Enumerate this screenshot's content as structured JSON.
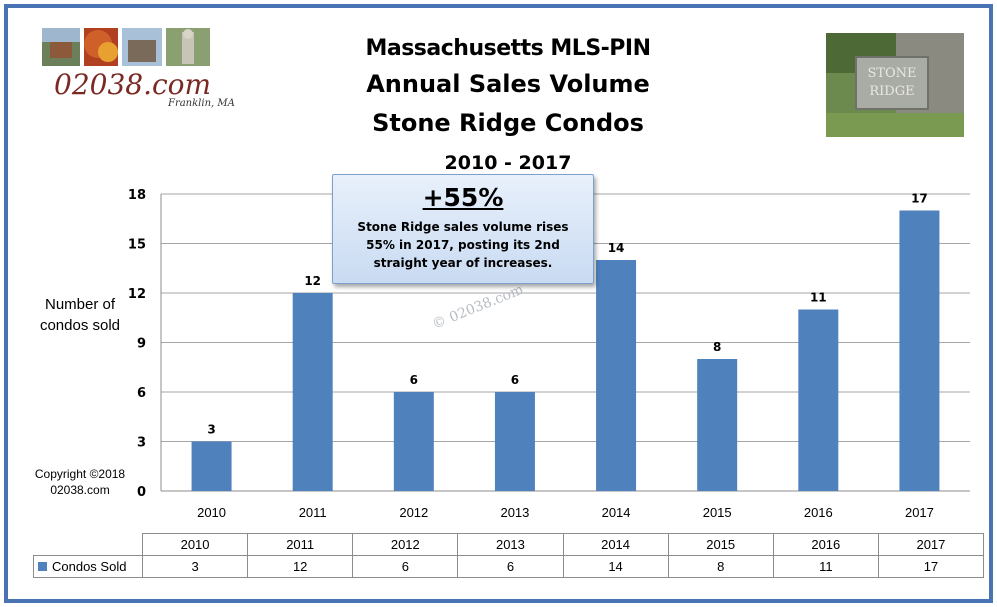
{
  "title_lines": [
    "Massachusetts MLS-PIN",
    "Annual Sales Volume",
    "Stone Ridge Condos",
    "2010 - 2017"
  ],
  "logo": {
    "text": "02038.com",
    "subtext": "Franklin, MA"
  },
  "photo": {
    "sign_line1": "STONE",
    "sign_line2": "RIDGE"
  },
  "callout": {
    "headline": "+55%",
    "text": "Stone Ridge sales volume rises 55% in 2017, posting its 2nd straight year of increases."
  },
  "watermark": "© 02038.com",
  "copyright": [
    "Copyright ©2018",
    "02038.com"
  ],
  "colors": {
    "bar": "#4f81bd",
    "frame": "#4a73b4"
  },
  "chart_data": {
    "type": "bar",
    "categories": [
      "2010",
      "2011",
      "2012",
      "2013",
      "2014",
      "2015",
      "2016",
      "2017"
    ],
    "series": [
      {
        "name": "Condos Sold",
        "values": [
          3,
          12,
          6,
          6,
          14,
          8,
          11,
          17
        ]
      }
    ],
    "ylabel": "Number of condos sold",
    "xlabel": "",
    "ylim": [
      0,
      18
    ],
    "yticks": [
      0,
      3,
      6,
      9,
      12,
      15,
      18
    ],
    "grid": true,
    "data_labels": true,
    "data_table": true
  }
}
